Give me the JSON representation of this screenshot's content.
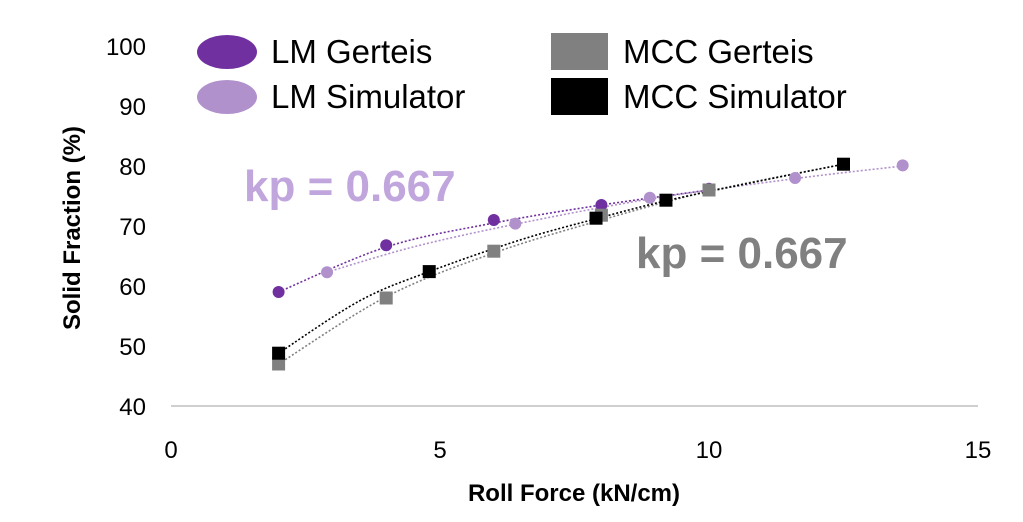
{
  "chart_data": {
    "type": "scatter",
    "xlabel": "Roll Force (kN/cm)",
    "ylabel": "Solid Fraction (%)",
    "xlim": [
      0,
      15
    ],
    "ylim": [
      40,
      100
    ],
    "x_ticks": [
      "0",
      "5",
      "10",
      "15"
    ],
    "y_ticks": [
      "40",
      "50",
      "60",
      "70",
      "80",
      "90",
      "100"
    ],
    "grid": false,
    "legend_position": "top",
    "series": [
      {
        "name": "LM Gerteis",
        "marker": "circle",
        "color": "#7030a0",
        "x": [
          2,
          4,
          6,
          8,
          10
        ],
        "y": [
          59,
          66.8,
          71,
          73.5,
          76.2
        ],
        "trend_x": [
          2,
          4,
          6,
          8,
          10
        ],
        "trend_y": [
          59,
          66.5,
          70.5,
          73.5,
          76
        ]
      },
      {
        "name": "LM Simulator",
        "marker": "circle",
        "color": "#b191cc",
        "x": [
          2.9,
          6.4,
          8.9,
          11.6,
          13.6
        ],
        "y": [
          62.3,
          70.4,
          74.7,
          78,
          80.1
        ],
        "trend_x": [
          2.9,
          4.5,
          6.4,
          8.9,
          11.6,
          13.6
        ],
        "trend_y": [
          62.3,
          66.5,
          70.3,
          74.5,
          77.9,
          80
        ]
      },
      {
        "name": "MCC Gerteis",
        "marker": "square",
        "color": "#808080",
        "x": [
          2,
          4,
          6,
          8,
          10
        ],
        "y": [
          47,
          58,
          65.8,
          71.8,
          76
        ],
        "trend_x": [
          2,
          4,
          6,
          8,
          10,
          12.5
        ],
        "trend_y": [
          47,
          58.2,
          65.5,
          71,
          75.8,
          80.3
        ]
      },
      {
        "name": "MCC Simulator",
        "marker": "square",
        "color": "#000000",
        "x": [
          2,
          4.8,
          7.9,
          9.2,
          12.5
        ],
        "y": [
          48.8,
          62.4,
          71.3,
          74.3,
          80.3
        ],
        "trend_x": [
          2,
          3.5,
          4.8,
          6.5,
          7.9,
          9.2,
          11,
          12.5
        ],
        "trend_y": [
          48.8,
          57.5,
          62.4,
          67.7,
          71.2,
          74.2,
          77.6,
          80.3
        ]
      }
    ],
    "annotations": [
      {
        "text": "kp = 0.667",
        "color": "#c0a6dc"
      },
      {
        "text": "kp = 0.667",
        "color": "#808080"
      }
    ]
  }
}
